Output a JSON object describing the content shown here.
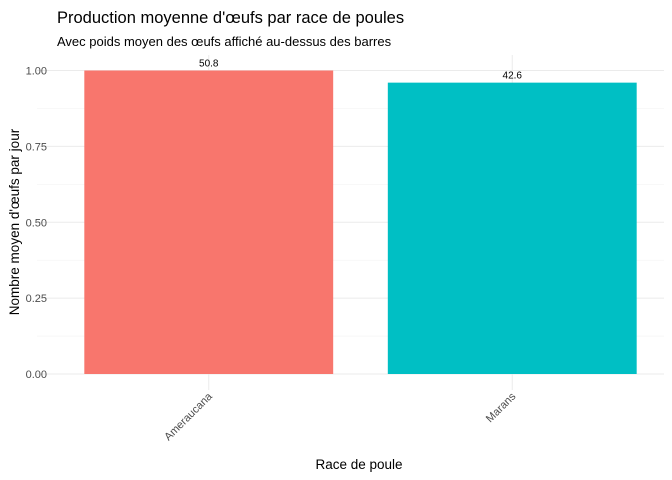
{
  "chart_data": {
    "type": "bar",
    "title": "Production moyenne d'œufs par race de poules",
    "subtitle": "Avec poids moyen des œufs affiché au-dessus des barres",
    "xlabel": "Race de poule",
    "ylabel": "Nombre moyen d'œufs par jour",
    "categories": [
      "Ameraucana",
      "Marans"
    ],
    "values": [
      1.0,
      0.96
    ],
    "data_labels": [
      "50.8",
      "42.6"
    ],
    "colors": [
      "#F8766D",
      "#00BFC4"
    ],
    "ylim": [
      0,
      1.0
    ],
    "yticks": [
      0.0,
      0.25,
      0.5,
      0.75,
      1.0
    ],
    "ytick_labels": [
      "0.00",
      "0.25",
      "0.50",
      "0.75",
      "1.00"
    ],
    "grid": true,
    "legend": "none"
  }
}
